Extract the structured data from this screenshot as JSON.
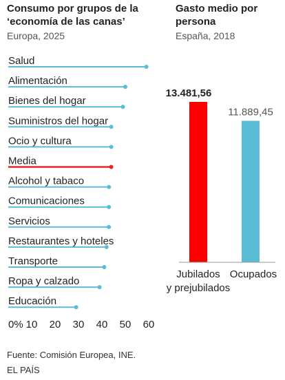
{
  "left_panel": {
    "title": "Consumo por grupos de la ‘economía de las canas’",
    "subtitle": "Europa, 2025"
  },
  "right_panel": {
    "title": "Gasto medio por persona",
    "subtitle": "España, 2018"
  },
  "source": "Fuente: Comisión Europea, INE.",
  "brand": "EL PAÍS",
  "colors": {
    "series": "#5bbcd6",
    "highlight": "#e8262a",
    "jubilados": "#ff0000",
    "ocupados": "#5bbcd6"
  },
  "chart_data": [
    {
      "type": "bar",
      "orientation": "horizontal",
      "categories": [
        "Salud",
        "Alimentación",
        "Bienes del hogar",
        "Suministros del hogar",
        "Ocio y cultura",
        "Media",
        "Alcohol y tabaco",
        "Comunicaciones",
        "Servicios",
        "Restaurantes y hoteles",
        "Transporte",
        "Ropa y calzado",
        "Educación"
      ],
      "values": [
        59,
        50,
        49,
        44,
        44,
        44,
        43,
        43,
        43,
        42,
        41,
        39,
        29
      ],
      "highlight": "Media",
      "xlim": [
        0,
        60
      ],
      "ticks": [
        0,
        10,
        20,
        30,
        40,
        50,
        60
      ],
      "tick_labels": [
        "0%",
        "10",
        "20",
        "30",
        "40",
        "50",
        "60"
      ]
    },
    {
      "type": "bar",
      "categories": [
        "Jubilados y prejubilados",
        "Ocupados"
      ],
      "values": [
        13481.56,
        11889.45
      ],
      "value_labels": [
        "13.481,56",
        "11.889,45"
      ],
      "ylim": [
        0,
        13481.56
      ]
    }
  ]
}
